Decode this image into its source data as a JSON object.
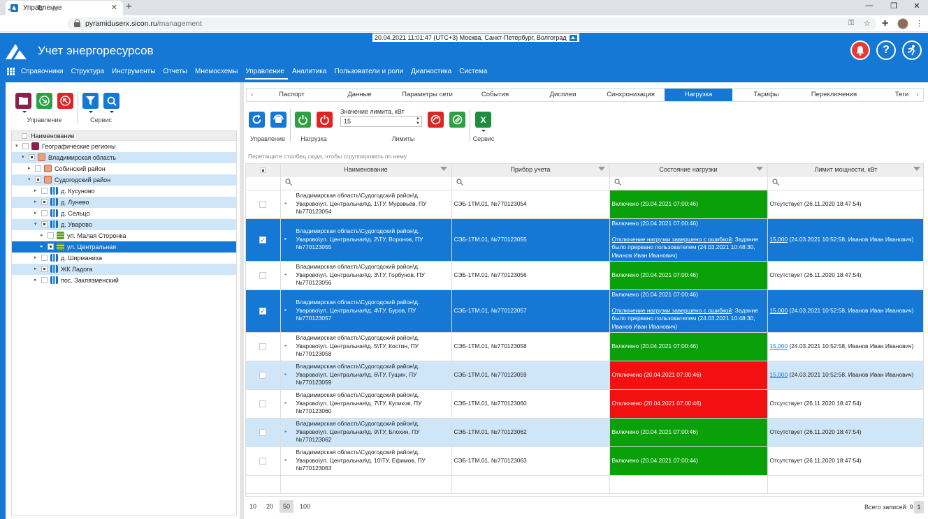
{
  "browser": {
    "tab_title": "Управление",
    "url_host": "pyramiduserx.sicon.ru",
    "url_path": "/management"
  },
  "header": {
    "datetime": "20.04.2021 11:01:47 (UTC+3) Москва, Санкт-Петербург, Волгоград",
    "app_title": "Учет энергоресурсов",
    "help_icon": "?",
    "menu": [
      "Справочники",
      "Структура",
      "Инструменты",
      "Отчеты",
      "Мнемосхемы",
      "Управление",
      "Аналитика",
      "Пользователи и роли",
      "Диагностика",
      "Система"
    ],
    "active_menu": "Управление"
  },
  "left": {
    "group_manage": "Управление",
    "group_service": "Сервис",
    "tree_header": "Наименование",
    "tree": [
      {
        "label": "Географические регионы",
        "level": 0,
        "icon": "folder",
        "expanded": true,
        "state": "none"
      },
      {
        "label": "Владимирская область",
        "level": 1,
        "icon": "region",
        "expanded": true,
        "state": "light"
      },
      {
        "label": "Собинский район",
        "level": 2,
        "icon": "region",
        "expanded": false,
        "state": "none"
      },
      {
        "label": "Судогодский район",
        "level": 2,
        "icon": "region",
        "expanded": true,
        "state": "light"
      },
      {
        "label": "д. Кусуново",
        "level": 3,
        "icon": "bld",
        "expanded": false,
        "state": "none"
      },
      {
        "label": "д. Лунево",
        "level": 3,
        "icon": "bld",
        "expanded": false,
        "state": "light"
      },
      {
        "label": "д. Сельцо",
        "level": 3,
        "icon": "bld",
        "expanded": false,
        "state": "none"
      },
      {
        "label": "д. Уварово",
        "level": 3,
        "icon": "bld",
        "expanded": true,
        "state": "light"
      },
      {
        "label": "ул. Малая Сторонка",
        "level": 4,
        "icon": "street",
        "expanded": false,
        "state": "none"
      },
      {
        "label": "ул. Центральная",
        "level": 4,
        "icon": "street",
        "expanded": false,
        "state": "dark"
      },
      {
        "label": "д. Ширманиха",
        "level": 3,
        "icon": "bld",
        "expanded": false,
        "state": "none"
      },
      {
        "label": "ЖК Ладога",
        "level": 3,
        "icon": "bld",
        "expanded": false,
        "state": "light"
      },
      {
        "label": "пос. Заклязменский",
        "level": 3,
        "icon": "bld",
        "expanded": false,
        "state": "none"
      }
    ]
  },
  "tabs": [
    "Паспорт",
    "Данные",
    "Параметры сети",
    "События",
    "Дисплеи",
    "Синхронизация",
    "Нагрузка",
    "Тарифы",
    "Переключения",
    "Теги"
  ],
  "active_tab": "Нагрузка",
  "toolbar": {
    "group_manage": "Управление",
    "group_load": "Нагрузка",
    "limit_label": "Значение лимита, кВт",
    "limit_value": "15",
    "group_limits": "Лимиты",
    "group_service": "Сервис",
    "excel_letter": "X"
  },
  "grid": {
    "group_hint": "Перетащите столбец сюда, чтобы сгруппировать по нему",
    "columns": [
      "Наименование",
      "Прибор учета",
      "Состояние нагрузки",
      "Лимит мощности, кВт"
    ],
    "rows": [
      {
        "name": "Владимирская область\\Судогодский район\\д. Уварово\\ул. Центральная\\д. 1\\ТУ, Муравьёв, ПУ №770123054",
        "device": "СЭБ-1ТМ.01, №770123054",
        "state": "Включено (20.04.2021 07:00:46)",
        "state_note": "",
        "state_note_rest": "",
        "state_color": "green",
        "limit_value": "",
        "limit_text": "Отсутствует (26.11.2020 18:47:54)",
        "checked": false,
        "style": "normal"
      },
      {
        "name": "Владимирская область\\Судогодский район\\д. Уварово\\ул. Центральная\\д. 2\\ТУ, Воронов, ПУ №770123055",
        "device": "СЭБ-1ТМ.01, №770123055",
        "state": "Включено (20.04.2021 07:00:46)",
        "state_note": "Отключение нагрузки завершено с ошибкой",
        "state_note_rest": ": Задание было прервано пользователем (24.03.2021 10:48:30, Иванов Иван Иванович)",
        "state_color": "sel",
        "limit_value": "15,000",
        "limit_text": " (24.03.2021 10:52:58, Иванов Иван Иванович)",
        "checked": true,
        "style": "sel"
      },
      {
        "name": "Владимирская область\\Судогодский район\\д. Уварово\\ул. Центральная\\д. 3\\ТУ, Горбунов, ПУ №770123056",
        "device": "СЭБ-1ТМ.01, №770123056",
        "state": "Включено (20.04.2021 07:00:46)",
        "state_note": "",
        "state_note_rest": "",
        "state_color": "green",
        "limit_value": "",
        "limit_text": "Отсутствует (26.11.2020 18:47:54)",
        "checked": false,
        "style": "normal"
      },
      {
        "name": "Владимирская область\\Судогодский район\\д. Уварово\\ул. Центральная\\д. 4\\ТУ, Буров, ПУ №770123057",
        "device": "СЭБ-1ТМ.01, №770123057",
        "state": "Включено (20.04.2021 07:00:46)",
        "state_note": "Отключение нагрузки завершено с ошибкой",
        "state_note_rest": ": Задание было прервано пользователем (24.03.2021 10:48:30, Иванов Иван Иванович)",
        "state_color": "sel",
        "limit_value": "15,000",
        "limit_text": " (24.03.2021 10:52:58, Иванов Иван Иванович)",
        "checked": true,
        "style": "sel"
      },
      {
        "name": "Владимирская область\\Судогодский район\\д. Уварово\\ул. Центральная\\д. 5\\ТУ, Костин, ПУ №770123058",
        "device": "СЭБ-1ТМ.01, №770123058",
        "state": "Включено (20.04.2021 07:00:46)",
        "state_note": "",
        "state_note_rest": "",
        "state_color": "green",
        "limit_value": "15,000",
        "limit_text": " (24.03.2021 10:52:58, Иванов Иван Иванович)",
        "checked": false,
        "style": "normal"
      },
      {
        "name": "Владимирская область\\Судогодский район\\д. Уварово\\ул. Центральная\\д. 6\\ТУ, Гущин, ПУ №770123059",
        "device": "СЭБ-1ТМ.01, №770123059",
        "state": "Отключено (20.04.2021 07:00:46)",
        "state_note": "",
        "state_note_rest": "",
        "state_color": "red",
        "limit_value": "15,000",
        "limit_text": " (24.03.2021 10:52:58, Иванов Иван Иванович)",
        "checked": false,
        "style": "light"
      },
      {
        "name": "Владимирская область\\Судогодский район\\д. Уварово\\ул. Центральная\\д. 7\\ТУ, Куликов, ПУ №770123060",
        "device": "СЭБ-1ТМ.01, №770123060",
        "state": "Отключено (20.04.2021 07:00:46)",
        "state_note": "",
        "state_note_rest": "",
        "state_color": "red",
        "limit_value": "",
        "limit_text": "Отсутствует (26.11.2020 18:47:54)",
        "checked": false,
        "style": "normal"
      },
      {
        "name": "Владимирская область\\Судогодский район\\д. Уварово\\ул. Центральная\\д. 9\\ТУ, Блохин, ПУ №770123062",
        "device": "СЭБ-1ТМ.01, №770123062",
        "state": "Включено (20.04.2021 07:00:46)",
        "state_note": "",
        "state_note_rest": "",
        "state_color": "green",
        "limit_value": "",
        "limit_text": "Отсутствует (26.11.2020 18:47:54)",
        "checked": false,
        "style": "light"
      },
      {
        "name": "Владимирская область\\Судогодский район\\д. Уварово\\ул. Центральная\\д. 10\\ТУ, Ефимов, ПУ №770123063",
        "device": "СЭБ-1ТМ.01, №770123063",
        "state": "Включено (20.04.2021 07:00:44)",
        "state_note": "",
        "state_note_rest": "",
        "state_color": "green",
        "limit_value": "",
        "limit_text": "Отсутствует (26.11.2020 18:47:54)",
        "checked": false,
        "style": "normal"
      }
    ]
  },
  "pager": {
    "sizes": [
      "10",
      "20",
      "50",
      "100"
    ],
    "active_size": "50",
    "total": "Всего записей: 9",
    "page": "1"
  },
  "colors": {
    "brand": "#1478d4",
    "ok": "#0aa00a",
    "off": "#f21010",
    "selection_light": "#cfe6f9"
  }
}
